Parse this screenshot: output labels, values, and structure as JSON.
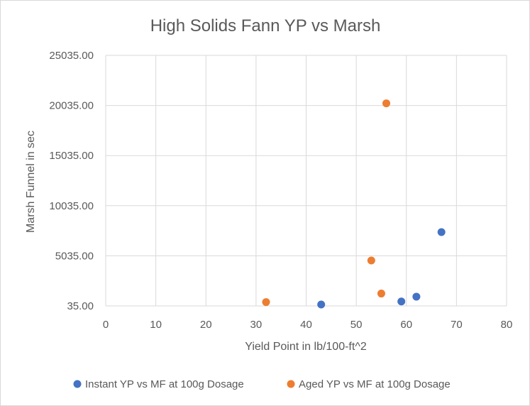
{
  "chart_data": {
    "type": "scatter",
    "title": "High Solids Fann YP vs Marsh",
    "xlabel": "Yield Point in lb/100-ft^2",
    "ylabel": "Marsh Funnel in sec",
    "xlim": [
      0,
      80
    ],
    "ylim": [
      35,
      25035
    ],
    "x_ticks": [
      0,
      10,
      20,
      30,
      40,
      50,
      60,
      70,
      80
    ],
    "y_ticks": [
      35,
      5035,
      10035,
      15035,
      20035,
      25035
    ],
    "x_tick_labels": [
      "0",
      "10",
      "20",
      "30",
      "40",
      "50",
      "60",
      "70",
      "80"
    ],
    "y_tick_labels": [
      "35.00",
      "5035.00",
      "10035.00",
      "15035.00",
      "20035.00",
      "25035.00"
    ],
    "grid": true,
    "legend_position": "bottom",
    "series": [
      {
        "name": "Instant YP vs MF at 100g Dosage",
        "color": "#4472C4",
        "points": [
          [
            43,
            180
          ],
          [
            59,
            480
          ],
          [
            62,
            960
          ],
          [
            67,
            7400
          ]
        ]
      },
      {
        "name": "Aged YP vs MF at 100g Dosage",
        "color": "#ED7D31",
        "points": [
          [
            32,
            420
          ],
          [
            53,
            4570
          ],
          [
            55,
            1270
          ],
          [
            56,
            20250
          ]
        ]
      }
    ]
  }
}
